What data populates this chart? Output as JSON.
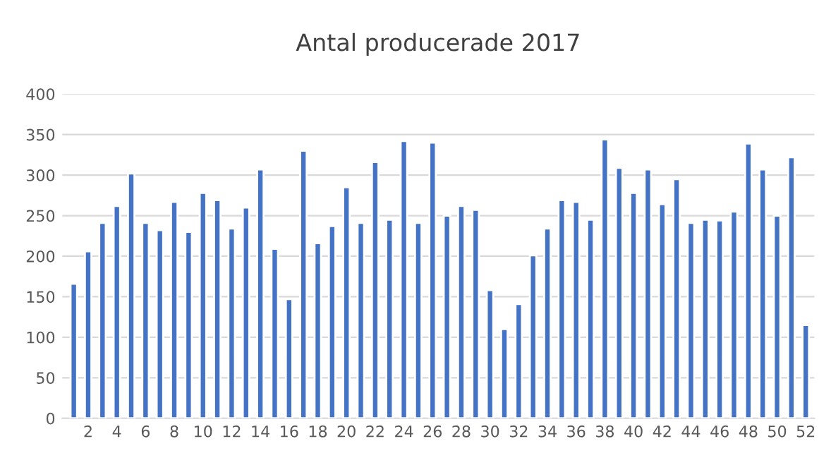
{
  "chart_data": {
    "type": "bar",
    "title": "Antal producerade 2017",
    "categories": [
      null,
      "2",
      null,
      "4",
      null,
      "6",
      null,
      "8",
      null,
      "10",
      null,
      "12",
      null,
      "14",
      null,
      "16",
      null,
      "18",
      null,
      "20",
      null,
      "22",
      null,
      "24",
      null,
      "26",
      null,
      "28",
      null,
      "30",
      null,
      "32",
      null,
      "34",
      null,
      "36",
      null,
      "38",
      null,
      "40",
      null,
      "42",
      null,
      "44",
      null,
      "46",
      null,
      "48",
      null,
      "50",
      null,
      "52"
    ],
    "values": [
      166,
      206,
      241,
      262,
      302,
      241,
      232,
      267,
      230,
      278,
      269,
      234,
      260,
      307,
      209,
      147,
      330,
      216,
      237,
      285,
      241,
      316,
      245,
      342,
      241,
      340,
      250,
      262,
      257,
      158,
      110,
      141,
      201,
      234,
      269,
      267,
      245,
      344,
      309,
      278,
      307,
      264,
      295,
      241,
      245,
      244,
      255,
      339,
      307,
      250,
      322,
      115
    ],
    "color": "#4472c4",
    "ylim": [
      0,
      400
    ],
    "yticks": [
      0,
      50,
      100,
      150,
      200,
      250,
      300,
      350,
      400
    ],
    "grid": "y"
  }
}
